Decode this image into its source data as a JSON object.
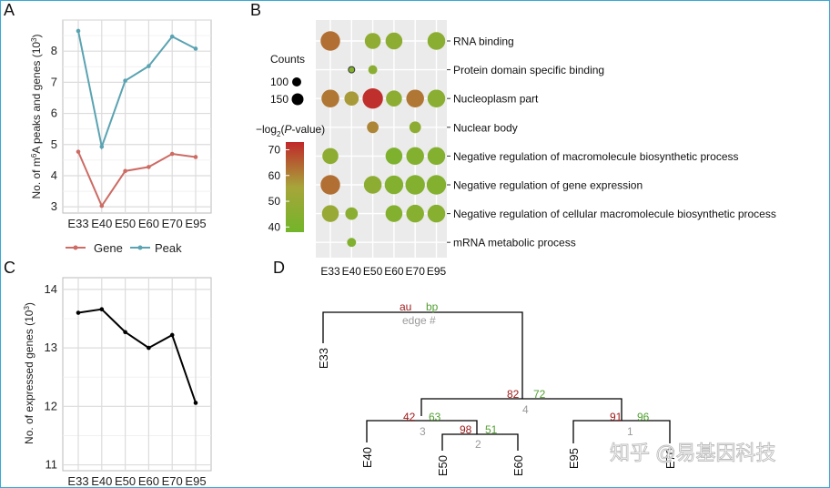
{
  "panels": {
    "A": "A",
    "B": "B",
    "C": "C",
    "D": "D"
  },
  "watermark": "知乎 @易基因科技",
  "colors": {
    "gene": "#cd6b64",
    "peak": "#5aa3b2",
    "line_c": "#000000",
    "au": "#a01c1c",
    "bp": "#52a032",
    "edge": "#9a9a9a",
    "gradient_high": "#c0282a",
    "gradient_mid": "#a7a53a",
    "gradient_low": "#72b52a"
  },
  "chart_data": [
    {
      "panel": "A",
      "type": "line",
      "categories": [
        "E33",
        "E40",
        "E50",
        "E60",
        "E70",
        "E95"
      ],
      "series": [
        {
          "name": "Gene",
          "values": [
            4.77,
            3.03,
            4.15,
            4.28,
            4.7,
            4.6
          ]
        },
        {
          "name": "Peak",
          "values": [
            8.65,
            4.93,
            7.05,
            7.52,
            8.47,
            8.08
          ]
        }
      ],
      "ylabel_parts": [
        "No. of m",
        "6",
        "A peaks and  genes (10",
        "3",
        ")"
      ],
      "ylim": [
        2.8,
        9.0
      ],
      "yticks": [
        "3",
        "4",
        "5",
        "6",
        "7",
        "8"
      ],
      "legend": [
        "Gene",
        "Peak"
      ],
      "legend_position": "bottom",
      "grid": true
    },
    {
      "panel": "B",
      "type": "scatter",
      "x_categories": [
        "E33",
        "E40",
        "E50",
        "E60",
        "E70",
        "E95"
      ],
      "y_categories": [
        "RNA binding",
        "Protein domain specific binding",
        "Nucleoplasm part",
        "Nuclear body",
        "Negative regulation of macromolecule biosynthetic process",
        "Negative regulation of gene expression",
        "Negative regulation of cellular macromolecule biosynthetic process",
        "mRNA metabolic process"
      ],
      "points": [
        {
          "row": 0,
          "col": 0,
          "count": 145,
          "logp": 63
        },
        {
          "row": 0,
          "col": 2,
          "count": 125,
          "logp": 48
        },
        {
          "row": 0,
          "col": 3,
          "count": 130,
          "logp": 47
        },
        {
          "row": 0,
          "col": 5,
          "count": 135,
          "logp": 46
        },
        {
          "row": 1,
          "col": 1,
          "count": 70,
          "logp": 44
        },
        {
          "row": 1,
          "col": 2,
          "count": 85,
          "logp": 46
        },
        {
          "row": 2,
          "col": 0,
          "count": 135,
          "logp": 62
        },
        {
          "row": 2,
          "col": 1,
          "count": 115,
          "logp": 57
        },
        {
          "row": 2,
          "col": 2,
          "count": 150,
          "logp": 72
        },
        {
          "row": 2,
          "col": 3,
          "count": 125,
          "logp": 47
        },
        {
          "row": 2,
          "col": 4,
          "count": 135,
          "logp": 62
        },
        {
          "row": 2,
          "col": 5,
          "count": 135,
          "logp": 46
        },
        {
          "row": 3,
          "col": 2,
          "count": 100,
          "logp": 60
        },
        {
          "row": 3,
          "col": 4,
          "count": 100,
          "logp": 47
        },
        {
          "row": 4,
          "col": 0,
          "count": 125,
          "logp": 47
        },
        {
          "row": 4,
          "col": 3,
          "count": 130,
          "logp": 42
        },
        {
          "row": 4,
          "col": 4,
          "count": 135,
          "logp": 44
        },
        {
          "row": 4,
          "col": 5,
          "count": 135,
          "logp": 44
        },
        {
          "row": 5,
          "col": 0,
          "count": 145,
          "logp": 63
        },
        {
          "row": 5,
          "col": 2,
          "count": 135,
          "logp": 47
        },
        {
          "row": 5,
          "col": 3,
          "count": 140,
          "logp": 44
        },
        {
          "row": 5,
          "col": 4,
          "count": 145,
          "logp": 44
        },
        {
          "row": 5,
          "col": 5,
          "count": 145,
          "logp": 44
        },
        {
          "row": 6,
          "col": 0,
          "count": 130,
          "logp": 51
        },
        {
          "row": 6,
          "col": 1,
          "count": 105,
          "logp": 46
        },
        {
          "row": 6,
          "col": 3,
          "count": 130,
          "logp": 44
        },
        {
          "row": 6,
          "col": 4,
          "count": 135,
          "logp": 45
        },
        {
          "row": 6,
          "col": 5,
          "count": 135,
          "logp": 45
        },
        {
          "row": 7,
          "col": 1,
          "count": 85,
          "logp": 43
        }
      ],
      "size_legend_title": "Counts",
      "size_legend": [
        {
          "label": "100",
          "count": 100
        },
        {
          "label": "150",
          "count": 150
        }
      ],
      "color_legend_title_parts": [
        "−log",
        "2",
        "(",
        "P",
        "-value)"
      ],
      "color_ticks": [
        "70",
        "60",
        "50",
        "40"
      ],
      "color_range": [
        38,
        73
      ]
    },
    {
      "panel": "C",
      "type": "line",
      "categories": [
        "E33",
        "E40",
        "E50",
        "E60",
        "E70",
        "E95"
      ],
      "series": [
        {
          "name": "",
          "values": [
            13.6,
            13.66,
            13.27,
            13.0,
            13.22,
            12.06
          ]
        }
      ],
      "ylabel_parts": [
        "No. of expressed genes (10",
        "3",
        ")"
      ],
      "ylim": [
        10.9,
        14.2
      ],
      "yticks": [
        "11",
        "12",
        "13",
        "14"
      ],
      "grid": true
    },
    {
      "panel": "D",
      "type": "dendrogram",
      "leaves": [
        "E33",
        "E40",
        "E50",
        "E60",
        "E95",
        "E70"
      ],
      "legend": {
        "au": "au",
        "bp": "bp",
        "edge": "edge #"
      },
      "nodes": [
        {
          "au": "82",
          "bp": "72",
          "edge": "4"
        },
        {
          "au": "42",
          "bp": "63",
          "edge": "3"
        },
        {
          "au": "98",
          "bp": "51",
          "edge": "2"
        },
        {
          "au": "91",
          "bp": "96",
          "edge": "1"
        }
      ]
    }
  ]
}
